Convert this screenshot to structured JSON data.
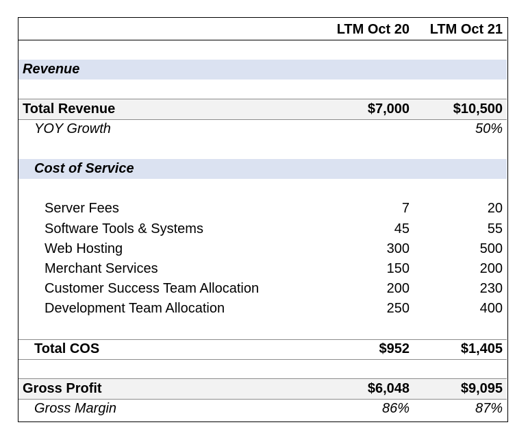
{
  "header": {
    "col1": "LTM Oct 20",
    "col2": "LTM Oct 21"
  },
  "revenue_section": {
    "title": "Revenue"
  },
  "total_revenue": {
    "label": "Total Revenue",
    "col1": "$7,000",
    "col2": "$10,500"
  },
  "yoy_growth": {
    "label": "YOY Growth",
    "col1": "",
    "col2": "50%"
  },
  "cos_section": {
    "title": "Cost of Service"
  },
  "cos_items": [
    {
      "label": "Server Fees",
      "col1": "7",
      "col2": "20"
    },
    {
      "label": "Software Tools & Systems",
      "col1": "45",
      "col2": "55"
    },
    {
      "label": "Web Hosting",
      "col1": "300",
      "col2": "500"
    },
    {
      "label": "Merchant Services",
      "col1": "150",
      "col2": "200"
    },
    {
      "label": "Customer Success Team Allocation",
      "col1": "200",
      "col2": "230"
    },
    {
      "label": "Development Team Allocation",
      "col1": "250",
      "col2": "400"
    }
  ],
  "total_cos": {
    "label": "Total COS",
    "col1": "$952",
    "col2": "$1,405"
  },
  "gross_profit": {
    "label": "Gross Profit",
    "col1": "$6,048",
    "col2": "$9,095"
  },
  "gross_margin": {
    "label": "Gross Margin",
    "col1": "86%",
    "col2": "87%"
  },
  "colors": {
    "section_band": "#dbe2f1",
    "total_band": "#f2f2f2",
    "rule": "#8c8c8c"
  }
}
